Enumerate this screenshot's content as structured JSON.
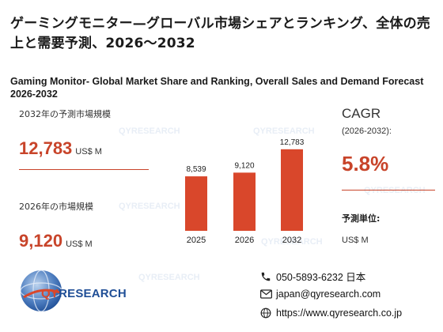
{
  "title_jp": "ゲーミングモニター—グローバル市場シェアとランキング、全体の売上と需要予測、2026～2032",
  "title_en": "Gaming Monitor- Global Market Share and Ranking, Overall Sales and Demand Forecast 2026-2032",
  "kpis": {
    "market_2032": {
      "label": "2032年の予測市場規模",
      "value": "12,783",
      "unit": "US$ M"
    },
    "market_2026": {
      "label": "2026年の市場規模",
      "value": "9,120",
      "unit": "US$ M"
    }
  },
  "cagr": {
    "label": "CAGR",
    "period": "(2026-2032):",
    "value": "5.8%"
  },
  "forecast_unit": {
    "label": "予測単位:",
    "value": "US$ M"
  },
  "chart_data": {
    "type": "bar",
    "categories": [
      "2025",
      "2026",
      "2032"
    ],
    "values": [
      8539,
      9120,
      12783
    ],
    "data_labels": [
      "8,539",
      "9,120",
      "12,783"
    ],
    "ylim": [
      0,
      14000
    ],
    "color": "#d9472b",
    "grid": false
  },
  "brand": {
    "name_q": "QY",
    "name_rest": "RESEARCH",
    "color": "#1f4e96",
    "watermark": "QYRESEARCH"
  },
  "contact": {
    "phone": "050-5893-6232 日本",
    "email": "japan@qyresearch.com",
    "website": "https://www.qyresearch.co.jp",
    "phone_icon": "phone-icon",
    "email_icon": "mail-icon",
    "web_icon": "globe-icon"
  }
}
